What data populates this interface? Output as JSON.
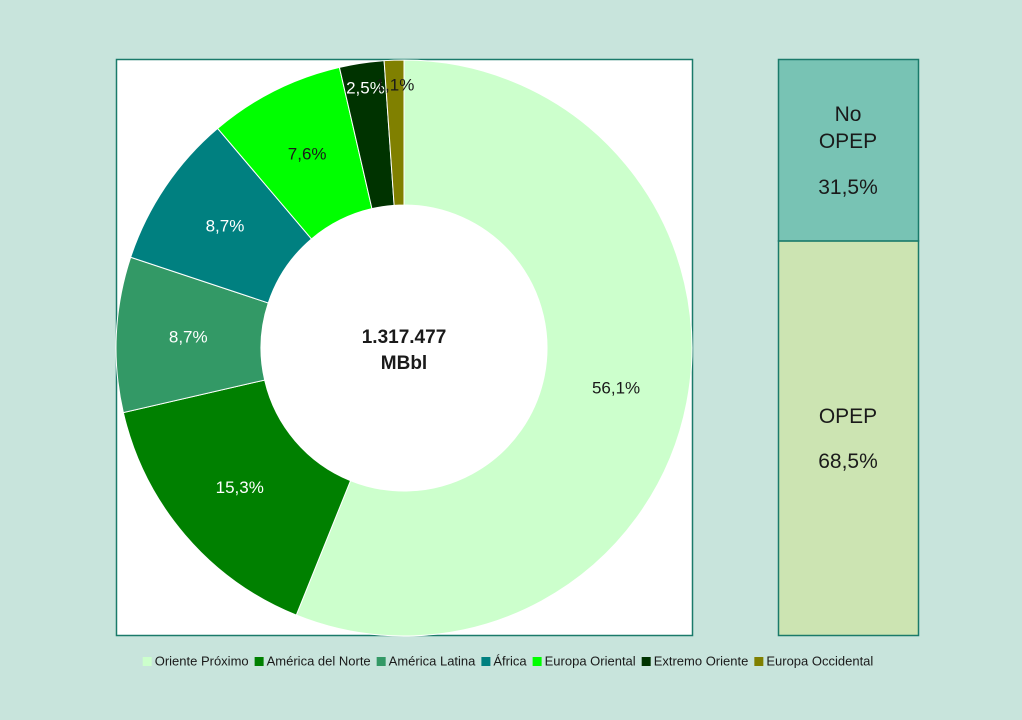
{
  "chart_data": [
    {
      "type": "pie",
      "annotations": [
        "1.317.477",
        "MBbl"
      ],
      "categories": [
        "Oriente Próximo",
        "América del Norte",
        "América Latina",
        "África",
        "Europa Oriental",
        "Extremo Oriente",
        "Europa Occidental"
      ],
      "values": [
        56.1,
        15.3,
        8.7,
        8.7,
        7.6,
        2.5,
        1.1
      ],
      "value_labels": [
        "56,1%",
        "15,3%",
        "8,7%",
        "8,7%",
        "7,6%",
        "2,5%",
        "1,1%"
      ],
      "colors": [
        "#ccffcc",
        "#008000",
        "#339966",
        "#008080",
        "#00ff00",
        "#003300",
        "#808000"
      ]
    },
    {
      "type": "bar",
      "stacked": true,
      "ylim": [
        0,
        100
      ],
      "series": [
        {
          "name": "OPEP",
          "color": "#cce4b2",
          "values": [
            68.5
          ],
          "value_labels": [
            "68,5%"
          ]
        },
        {
          "name": "No OPEP",
          "color": "#78c3b4",
          "values": [
            31.5
          ],
          "value_labels": [
            "31,5%"
          ]
        }
      ]
    }
  ]
}
